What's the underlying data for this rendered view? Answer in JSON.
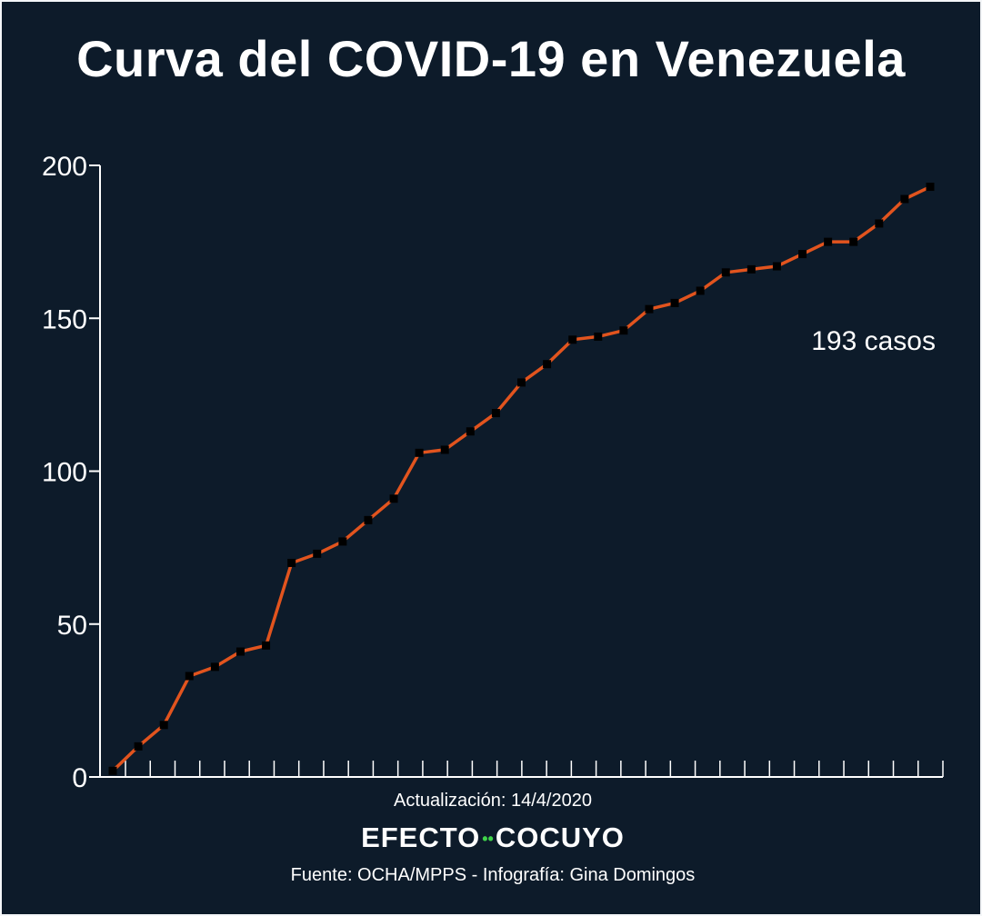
{
  "title": "Curva del COVID-19 en Venezuela",
  "update_text": "Actualización: 14/4/2020",
  "brand": {
    "left": "EFECTO",
    "right": "COCUYO",
    "dots": "••",
    "dots_color": "#3fd44a"
  },
  "source_text": "Fuente: OCHA/MPPS - Infografía: Gina Domingos",
  "colors": {
    "background": "#0d1b2a",
    "line": "#e2541e",
    "marker": "#000000",
    "axis": "#ffffff"
  },
  "chart_data": {
    "type": "line",
    "title": "",
    "xlabel": "",
    "ylabel": "",
    "ylim": [
      0,
      200
    ],
    "yticks": [
      0,
      50,
      100,
      150,
      200
    ],
    "grid": false,
    "legend": "none",
    "annotation": "193 casos",
    "series": [
      {
        "values": [
          2,
          10,
          17,
          33,
          36,
          41,
          43,
          70,
          73,
          77,
          84,
          91,
          106,
          107,
          113,
          119,
          129,
          135,
          143,
          144,
          146,
          153,
          155,
          159,
          165,
          166,
          167,
          171,
          175,
          175,
          181,
          189,
          193
        ]
      }
    ]
  }
}
